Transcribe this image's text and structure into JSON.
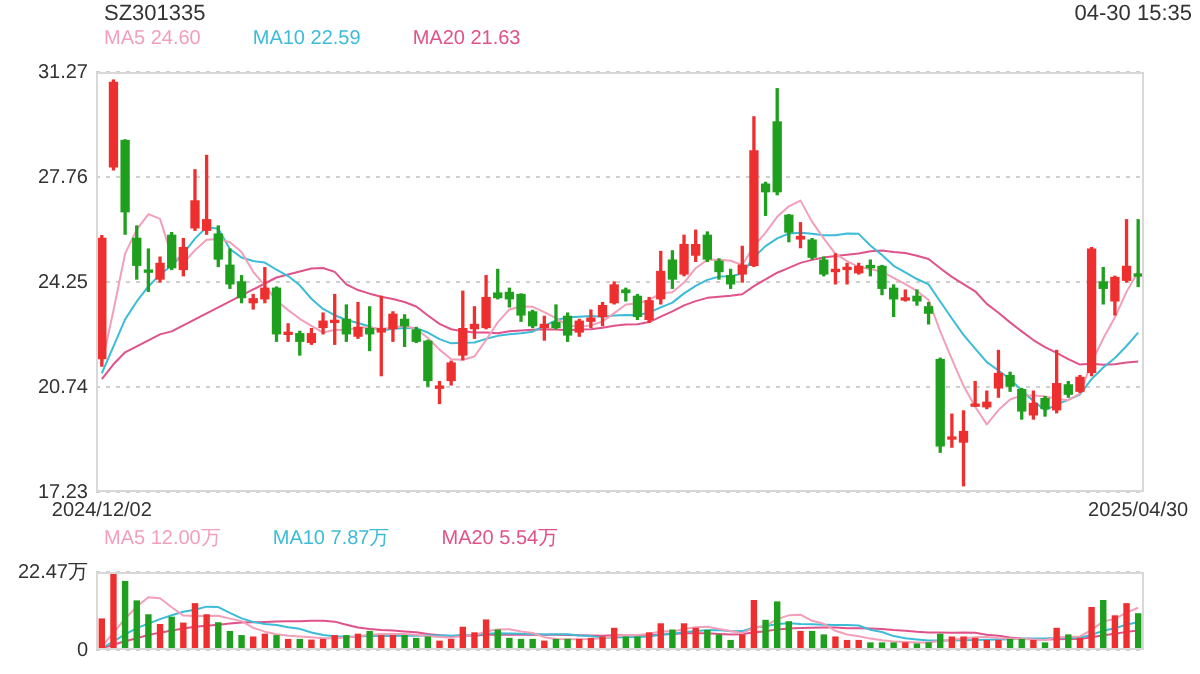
{
  "chart_data": [
    {
      "type": "candlestick",
      "title": "SZ301335",
      "annotations": [
        "04-30 15:35"
      ],
      "legend": "top left",
      "grid": "y",
      "marker": "none",
      "categories": [
        "2024/12/02",
        null,
        null,
        null,
        null,
        null,
        null,
        null,
        null,
        null,
        null,
        null,
        null,
        null,
        null,
        null,
        null,
        null,
        null,
        null,
        null,
        null,
        null,
        null,
        null,
        null,
        null,
        null,
        null,
        null,
        null,
        null,
        null,
        null,
        null,
        null,
        null,
        null,
        null,
        null,
        null,
        null,
        null,
        null,
        null,
        null,
        null,
        null,
        null,
        null,
        null,
        null,
        null,
        null,
        null,
        null,
        null,
        null,
        null,
        null,
        null,
        null,
        null,
        null,
        null,
        null,
        null,
        null,
        null,
        null,
        null,
        null,
        null,
        null,
        null,
        null,
        null,
        null,
        null,
        null,
        null,
        null,
        null,
        null,
        null,
        null,
        null,
        null,
        null,
        "2025/04/30"
      ],
      "ylim": [
        17.23,
        31.27
      ],
      "yticks": [
        17.23,
        20.74,
        24.25,
        27.76,
        31.27
      ],
      "ohlc": [
        [
          21.69,
          25.8,
          21.44,
          25.71
        ],
        [
          28.1,
          31.0,
          28.0,
          30.92
        ],
        [
          28.98,
          29.0,
          25.85,
          26.6
        ],
        [
          25.71,
          26.12,
          24.35,
          24.81
        ],
        [
          24.62,
          25.35,
          23.94,
          24.58
        ],
        [
          24.35,
          25.08,
          24.25,
          24.87
        ],
        [
          25.81,
          25.9,
          24.67,
          24.73
        ],
        [
          24.67,
          25.7,
          24.46,
          25.4
        ],
        [
          26.06,
          28.0,
          25.98,
          26.96
        ],
        [
          25.98,
          28.48,
          25.85,
          26.33
        ],
        [
          25.85,
          26.12,
          24.77,
          25.02
        ],
        [
          24.81,
          25.35,
          24.04,
          24.19
        ],
        [
          24.25,
          24.46,
          23.56,
          23.73
        ],
        [
          23.56,
          23.83,
          23.35,
          23.69
        ],
        [
          23.69,
          24.73,
          23.56,
          24.04
        ],
        [
          24.04,
          24.08,
          22.27,
          22.52
        ],
        [
          22.5,
          22.85,
          22.27,
          22.56
        ],
        [
          22.52,
          22.6,
          21.81,
          22.27
        ],
        [
          22.23,
          22.69,
          22.17,
          22.52
        ],
        [
          22.73,
          23.21,
          22.52,
          22.94
        ],
        [
          22.9,
          23.83,
          22.17,
          22.94
        ],
        [
          23.0,
          23.48,
          22.27,
          22.52
        ],
        [
          22.44,
          23.56,
          22.37,
          22.73
        ],
        [
          22.69,
          23.42,
          21.96,
          22.52
        ],
        [
          22.58,
          23.77,
          21.12,
          22.69
        ],
        [
          22.69,
          23.25,
          22.27,
          23.17
        ],
        [
          23.0,
          23.15,
          22.1,
          22.79
        ],
        [
          22.65,
          22.73,
          22.23,
          22.27
        ],
        [
          22.27,
          22.3,
          20.77,
          20.96
        ],
        [
          20.7,
          20.92,
          20.19,
          20.77
        ],
        [
          20.96,
          21.6,
          20.81,
          21.54
        ],
        [
          21.81,
          23.94,
          21.65,
          22.69
        ],
        [
          22.69,
          23.42,
          22.37,
          22.83
        ],
        [
          22.73,
          24.46,
          22.69,
          23.73
        ],
        [
          23.88,
          24.67,
          23.69,
          23.73
        ],
        [
          23.9,
          24.04,
          23.42,
          23.69
        ],
        [
          23.83,
          23.85,
          22.94,
          23.15
        ],
        [
          23.25,
          23.3,
          22.73,
          22.79
        ],
        [
          22.73,
          23.1,
          22.31,
          22.83
        ],
        [
          22.9,
          23.48,
          22.69,
          22.73
        ],
        [
          23.1,
          23.21,
          22.27,
          22.48
        ],
        [
          22.58,
          23.0,
          22.44,
          22.94
        ],
        [
          22.94,
          23.31,
          22.73,
          23.04
        ],
        [
          23.1,
          23.56,
          22.79,
          23.46
        ],
        [
          23.56,
          24.25,
          23.52,
          24.15
        ],
        [
          23.98,
          24.04,
          23.62,
          23.9
        ],
        [
          23.77,
          23.83,
          23.0,
          23.1
        ],
        [
          23.0,
          23.73,
          22.9,
          23.62
        ],
        [
          23.69,
          25.27,
          23.52,
          24.6
        ],
        [
          24.98,
          25.29,
          24.04,
          24.35
        ],
        [
          24.52,
          25.81,
          24.46,
          25.5
        ],
        [
          25.15,
          25.98,
          24.94,
          25.5
        ],
        [
          25.81,
          25.92,
          24.94,
          25.02
        ],
        [
          24.94,
          25.02,
          24.35,
          24.6
        ],
        [
          24.46,
          24.67,
          24.04,
          24.19
        ],
        [
          24.52,
          25.44,
          24.25,
          24.81
        ],
        [
          24.81,
          29.77,
          24.77,
          28.63
        ],
        [
          27.52,
          27.58,
          26.48,
          27.27
        ],
        [
          29.6,
          30.71,
          27.17,
          27.27
        ],
        [
          26.48,
          26.5,
          25.6,
          25.92
        ],
        [
          25.69,
          26.23,
          25.4,
          25.77
        ],
        [
          25.65,
          25.7,
          25.02,
          25.08
        ],
        [
          24.98,
          25.08,
          24.46,
          24.52
        ],
        [
          24.6,
          25.19,
          24.19,
          24.67
        ],
        [
          24.67,
          24.87,
          24.19,
          24.73
        ],
        [
          24.56,
          24.87,
          24.52,
          24.77
        ],
        [
          24.8,
          24.98,
          24.46,
          24.73
        ],
        [
          24.77,
          24.8,
          23.83,
          24.04
        ],
        [
          24.04,
          24.15,
          23.1,
          23.69
        ],
        [
          23.65,
          23.98,
          23.62,
          23.69
        ],
        [
          23.77,
          23.98,
          23.48,
          23.62
        ],
        [
          23.42,
          23.56,
          22.85,
          23.21
        ],
        [
          21.65,
          21.7,
          18.56,
          18.77
        ],
        [
          19.0,
          19.83,
          18.73,
          19.04
        ],
        [
          18.9,
          19.94,
          17.44,
          19.25
        ],
        [
          20.1,
          20.92,
          20.1,
          20.15
        ],
        [
          20.08,
          20.6,
          20.02,
          20.23
        ],
        [
          20.71,
          21.96,
          20.4,
          21.19
        ],
        [
          21.12,
          21.23,
          20.6,
          20.77
        ],
        [
          20.65,
          20.69,
          19.67,
          19.94
        ],
        [
          19.81,
          20.6,
          19.67,
          20.19
        ],
        [
          20.35,
          20.42,
          19.77,
          20.02
        ],
        [
          19.98,
          21.96,
          19.88,
          20.85
        ],
        [
          20.81,
          20.92,
          20.4,
          20.5
        ],
        [
          20.6,
          21.12,
          20.56,
          21.06
        ],
        [
          21.23,
          25.4,
          21.12,
          25.35
        ],
        [
          24.25,
          24.73,
          23.52,
          24.04
        ],
        [
          23.62,
          24.44,
          23.15,
          24.4
        ],
        [
          24.31,
          26.33,
          24.25,
          24.77
        ],
        [
          24.5,
          26.33,
          24.1,
          24.45
        ]
      ],
      "colors": [
        "#ee2f2f",
        "#ee2f2f",
        "#1e9f1e",
        "#1e9f1e",
        "#1e9f1e",
        "#ee2f2f",
        "#1e9f1e",
        "#ee2f2f",
        "#ee2f2f",
        "#ee2f2f",
        "#1e9f1e",
        "#1e9f1e",
        "#1e9f1e",
        "#ee2f2f",
        "#ee2f2f",
        "#1e9f1e",
        "#ee2f2f",
        "#1e9f1e",
        "#ee2f2f",
        "#ee2f2f",
        "#ee2f2f",
        "#1e9f1e",
        "#ee2f2f",
        "#1e9f1e",
        "#ee2f2f",
        "#ee2f2f",
        "#1e9f1e",
        "#1e9f1e",
        "#1e9f1e",
        "#ee2f2f",
        "#ee2f2f",
        "#ee2f2f",
        "#ee2f2f",
        "#ee2f2f",
        "#1e9f1e",
        "#1e9f1e",
        "#1e9f1e",
        "#1e9f1e",
        "#ee2f2f",
        "#1e9f1e",
        "#1e9f1e",
        "#ee2f2f",
        "#ee2f2f",
        "#ee2f2f",
        "#ee2f2f",
        "#1e9f1e",
        "#1e9f1e",
        "#ee2f2f",
        "#ee2f2f",
        "#1e9f1e",
        "#ee2f2f",
        "#ee2f2f",
        "#1e9f1e",
        "#1e9f1e",
        "#1e9f1e",
        "#ee2f2f",
        "#ee2f2f",
        "#1e9f1e",
        "#1e9f1e",
        "#1e9f1e",
        "#ee2f2f",
        "#1e9f1e",
        "#1e9f1e",
        "#ee2f2f",
        "#ee2f2f",
        "#ee2f2f",
        "#1e9f1e",
        "#1e9f1e",
        "#1e9f1e",
        "#ee2f2f",
        "#1e9f1e",
        "#1e9f1e",
        "#1e9f1e",
        "#ee2f2f",
        "#ee2f2f",
        "#ee2f2f",
        "#ee2f2f",
        "#ee2f2f",
        "#1e9f1e",
        "#1e9f1e",
        "#ee2f2f",
        "#1e9f1e",
        "#ee2f2f",
        "#1e9f1e",
        "#ee2f2f",
        "#ee2f2f",
        "#1e9f1e",
        "#ee2f2f",
        "#ee2f2f",
        "#1e9f1e"
      ],
      "series": [
        {
          "type": "line",
          "name": "MA5 24.60",
          "color": "#f29fb9",
          "values": [
            21.5,
            23.3,
            25.2,
            26.0,
            26.52,
            26.36,
            25.12,
            24.88,
            25.31,
            25.66,
            25.69,
            25.58,
            25.25,
            24.59,
            24.13,
            23.63,
            23.31,
            23.02,
            22.78,
            22.56,
            22.65,
            22.64,
            22.73,
            22.73,
            22.68,
            22.73,
            22.78,
            22.69,
            22.38,
            21.99,
            21.67,
            21.65,
            21.76,
            22.31,
            22.9,
            23.33,
            23.43,
            23.42,
            23.24,
            23.04,
            22.8,
            22.75,
            22.8,
            22.93,
            23.21,
            23.5,
            23.53,
            23.65,
            23.87,
            23.91,
            24.23,
            24.71,
            24.99,
            24.99,
            24.96,
            24.82,
            25.45,
            25.9,
            26.43,
            26.78,
            26.97,
            26.26,
            25.71,
            25.19,
            24.95,
            24.75,
            24.68,
            24.59,
            24.39,
            24.18,
            23.95,
            23.65,
            22.6,
            21.67,
            20.78,
            20.08,
            19.49,
            19.97,
            20.32,
            20.46,
            20.46,
            20.42,
            20.35,
            20.3,
            20.52,
            21.56,
            22.36,
            23.07,
            23.92,
            24.6
          ]
        },
        {
          "type": "line",
          "name": "MA10 22.59",
          "color": "#3cbcd6",
          "values": [
            21.2,
            22.1,
            23.0,
            23.6,
            24.1,
            24.5,
            24.8,
            25.2,
            25.7,
            26.09,
            26.03,
            25.35,
            25.07,
            24.95,
            24.9,
            24.66,
            24.45,
            24.14,
            23.69,
            23.35,
            23.14,
            22.98,
            22.88,
            22.76,
            22.62,
            22.69,
            22.71,
            22.71,
            22.56,
            22.34,
            22.2,
            22.22,
            22.23,
            22.35,
            22.45,
            22.5,
            22.54,
            22.59,
            22.78,
            22.97,
            23.07,
            23.09,
            23.11,
            23.09,
            23.13,
            23.15,
            23.14,
            23.23,
            23.4,
            23.56,
            23.87,
            24.12,
            24.32,
            24.43,
            24.44,
            24.53,
            25.08,
            25.45,
            25.71,
            25.87,
            25.9,
            25.86,
            25.81,
            25.81,
            25.87,
            25.86,
            25.47,
            25.15,
            24.79,
            24.57,
            24.35,
            24.17,
            23.6,
            23.03,
            22.48,
            22.02,
            21.57,
            21.29,
            21.0,
            20.62,
            20.27,
            19.96,
            20.16,
            20.31,
            20.49,
            21.01,
            21.39,
            21.71,
            22.11,
            22.56
          ]
        },
        {
          "type": "line",
          "name": "MA20 21.63",
          "color": "#e0528a",
          "values": [
            21.0,
            21.5,
            21.9,
            22.1,
            22.3,
            22.5,
            22.6,
            22.8,
            23.0,
            23.2,
            23.4,
            23.6,
            23.8,
            24.0,
            24.2,
            24.4,
            24.5,
            24.6,
            24.7,
            24.72,
            24.59,
            24.17,
            23.98,
            23.86,
            23.76,
            23.68,
            23.58,
            23.43,
            23.13,
            22.85,
            22.67,
            22.6,
            22.56,
            22.56,
            22.54,
            22.6,
            22.63,
            22.65,
            22.67,
            22.66,
            22.64,
            22.66,
            22.67,
            22.72,
            22.79,
            22.83,
            22.84,
            22.91,
            23.09,
            23.27,
            23.47,
            23.61,
            23.72,
            23.76,
            23.79,
            23.84,
            24.11,
            24.34,
            24.56,
            24.72,
            24.89,
            24.99,
            25.07,
            25.12,
            25.16,
            25.2,
            25.28,
            25.3,
            25.25,
            25.22,
            25.13,
            25.02,
            24.71,
            24.42,
            24.18,
            23.94,
            23.52,
            23.22,
            22.9,
            22.6,
            22.31,
            22.07,
            21.88,
            21.67,
            21.49,
            21.52,
            21.48,
            21.5,
            21.56,
            21.59
          ]
        }
      ]
    },
    {
      "type": "bar",
      "legend": "top left",
      "grid": "y",
      "marker": "none",
      "categories": [
        null,
        null,
        null,
        null,
        null,
        null,
        null,
        null,
        null,
        null,
        null,
        null,
        null,
        null,
        null,
        null,
        null,
        null,
        null,
        null,
        null,
        null,
        null,
        null,
        null,
        null,
        null,
        null,
        null,
        null,
        null,
        null,
        null,
        null,
        null,
        null,
        null,
        null,
        null,
        null,
        null,
        null,
        null,
        null,
        null,
        null,
        null,
        null,
        null,
        null,
        null,
        null,
        null,
        null,
        null,
        null,
        null,
        null,
        null,
        null,
        null,
        null,
        null,
        null,
        null,
        null,
        null,
        null,
        null,
        null,
        null,
        null,
        null,
        null,
        null,
        null,
        null,
        null,
        null,
        null,
        null,
        null,
        null,
        null,
        null,
        null,
        null,
        null,
        null,
        null
      ],
      "ylim": [
        0,
        22.47
      ],
      "yticks": [
        0,
        {
          "value": 22.47,
          "label": "22.47万"
        }
      ],
      "values": [
        9.1,
        22.47,
        19.9,
        14.3,
        10.3,
        7.5,
        9.6,
        7.9,
        13.5,
        10.3,
        8.0,
        5.5,
        4.3,
        3.9,
        4.7,
        4.3,
        3.2,
        3.2,
        3.0,
        3.2,
        4.3,
        4.3,
        4.7,
        5.5,
        4.3,
        4.3,
        4.3,
        3.5,
        3.9,
        2.7,
        3.2,
        6.7,
        5.1,
        8.8,
        5.9,
        3.5,
        3.2,
        3.2,
        2.7,
        3.2,
        3.2,
        3.2,
        3.5,
        3.9,
        6.4,
        3.9,
        3.9,
        5.1,
        7.7,
        5.9,
        7.7,
        6.4,
        5.8,
        4.5,
        2.9,
        4.5,
        14.4,
        8.7,
        14.0,
        8.3,
        5.5,
        5.5,
        4.5,
        3.9,
        2.9,
        2.9,
        2.2,
        2.2,
        2.2,
        2.2,
        1.9,
        2.2,
        4.7,
        3.9,
        3.9,
        3.5,
        2.9,
        2.9,
        3.2,
        3.2,
        2.9,
        2.2,
        6.4,
        4.5,
        3.5,
        12.4,
        14.4,
        10.0,
        13.5,
        10.6
      ],
      "colors": [
        "#ee2f2f",
        "#ee2f2f",
        "#1e9f1e",
        "#1e9f1e",
        "#1e9f1e",
        "#ee2f2f",
        "#1e9f1e",
        "#ee2f2f",
        "#ee2f2f",
        "#ee2f2f",
        "#1e9f1e",
        "#1e9f1e",
        "#1e9f1e",
        "#ee2f2f",
        "#ee2f2f",
        "#1e9f1e",
        "#ee2f2f",
        "#1e9f1e",
        "#ee2f2f",
        "#ee2f2f",
        "#ee2f2f",
        "#1e9f1e",
        "#ee2f2f",
        "#1e9f1e",
        "#ee2f2f",
        "#ee2f2f",
        "#1e9f1e",
        "#1e9f1e",
        "#1e9f1e",
        "#ee2f2f",
        "#ee2f2f",
        "#ee2f2f",
        "#ee2f2f",
        "#ee2f2f",
        "#1e9f1e",
        "#1e9f1e",
        "#1e9f1e",
        "#1e9f1e",
        "#ee2f2f",
        "#1e9f1e",
        "#1e9f1e",
        "#ee2f2f",
        "#ee2f2f",
        "#ee2f2f",
        "#ee2f2f",
        "#1e9f1e",
        "#1e9f1e",
        "#ee2f2f",
        "#ee2f2f",
        "#1e9f1e",
        "#ee2f2f",
        "#ee2f2f",
        "#1e9f1e",
        "#1e9f1e",
        "#1e9f1e",
        "#ee2f2f",
        "#ee2f2f",
        "#1e9f1e",
        "#1e9f1e",
        "#1e9f1e",
        "#ee2f2f",
        "#1e9f1e",
        "#1e9f1e",
        "#ee2f2f",
        "#ee2f2f",
        "#ee2f2f",
        "#1e9f1e",
        "#1e9f1e",
        "#1e9f1e",
        "#ee2f2f",
        "#1e9f1e",
        "#1e9f1e",
        "#1e9f1e",
        "#ee2f2f",
        "#ee2f2f",
        "#ee2f2f",
        "#ee2f2f",
        "#ee2f2f",
        "#1e9f1e",
        "#1e9f1e",
        "#ee2f2f",
        "#1e9f1e",
        "#ee2f2f",
        "#1e9f1e",
        "#ee2f2f",
        "#ee2f2f",
        "#1e9f1e",
        "#ee2f2f",
        "#ee2f2f",
        "#1e9f1e"
      ],
      "series": [
        {
          "type": "line",
          "name": "MA5 12.00万",
          "color": "#f29fb9",
          "values": [
            1.0,
            5.0,
            9.0,
            12.5,
            15.21,
            14.89,
            12.32,
            9.92,
            9.76,
            9.76,
            9.86,
            9.04,
            8.32,
            6.4,
            5.28,
            4.54,
            4.08,
            3.86,
            3.68,
            3.38,
            3.38,
            3.6,
            3.9,
            4.4,
            4.62,
            4.62,
            4.62,
            4.38,
            4.06,
            3.74,
            3.52,
            4.0,
            4.32,
            5.3,
            5.94,
            6.0,
            5.3,
            4.92,
            3.7,
            3.16,
            3.1,
            3.1,
            3.16,
            3.4,
            4.04,
            4.18,
            4.32,
            4.64,
            5.4,
            5.3,
            6.06,
            6.56,
            6.7,
            6.06,
            5.46,
            4.82,
            6.42,
            7.0,
            8.9,
            9.98,
            10.18,
            8.4,
            7.56,
            5.54,
            4.46,
            3.94,
            3.28,
            2.82,
            2.48,
            2.34,
            2.14,
            2.14,
            2.64,
            2.98,
            3.32,
            3.64,
            3.78,
            3.42,
            3.28,
            3.14,
            3.02,
            2.88,
            3.58,
            3.84,
            3.9,
            5.8,
            8.24,
            8.96,
            10.76,
            12.18
          ]
        },
        {
          "type": "line",
          "name": "MA10 7.87万",
          "color": "#3cbcd6",
          "values": [
            0.5,
            2.5,
            4.5,
            6.3,
            7.6,
            8.9,
            10.0,
            11.0,
            11.6,
            12.49,
            12.38,
            10.68,
            9.12,
            8.08,
            7.52,
            7.2,
            6.56,
            6.09,
            5.04,
            4.33,
            3.96,
            3.84,
            3.88,
            4.04,
            4.0,
            4.0,
            4.11,
            4.14,
            4.23,
            4.18,
            4.07,
            4.31,
            4.35,
            4.68,
            4.84,
            4.76,
            4.65,
            4.62,
            4.5,
            4.55,
            4.55,
            4.2,
            4.04,
            3.55,
            3.6,
            3.64,
            3.71,
            3.9,
            4.4,
            4.67,
            5.12,
            5.44,
            5.67,
            5.73,
            5.38,
            5.44,
            6.49,
            6.85,
            7.48,
            7.72,
            7.5,
            7.41,
            7.28,
            7.22,
            7.22,
            7.06,
            5.84,
            5.19,
            4.01,
            3.4,
            3.04,
            2.71,
            2.73,
            2.73,
            2.83,
            2.89,
            2.96,
            3.03,
            3.13,
            3.23,
            3.33,
            3.33,
            3.5,
            3.56,
            3.52,
            4.41,
            5.56,
            6.27,
            7.3,
            8.04
          ]
        },
        {
          "type": "line",
          "name": "MA20 5.54万",
          "color": "#e0528a",
          "values": [
            0.5,
            1.5,
            2.5,
            3.4,
            4.3,
            5.0,
            5.6,
            6.2,
            6.7,
            7.0,
            7.3,
            7.6,
            7.9,
            8.0,
            8.1,
            8.2,
            8.3,
            8.3,
            8.4,
            8.41,
            8.17,
            7.26,
            6.5,
            6.06,
            5.76,
            5.6,
            5.34,
            5.12,
            4.64,
            4.26,
            4.02,
            4.08,
            4.12,
            4.36,
            4.42,
            4.38,
            4.38,
            4.38,
            4.37,
            4.37,
            4.31,
            4.26,
            4.2,
            4.12,
            4.22,
            4.2,
            4.18,
            4.26,
            4.45,
            4.61,
            4.84,
            4.82,
            4.86,
            4.64,
            4.49,
            4.54,
            5.1,
            5.38,
            5.94,
            6.2,
            6.31,
            6.43,
            6.48,
            6.48,
            6.3,
            6.25,
            6.17,
            6.02,
            5.75,
            5.56,
            5.27,
            5.06,
            5.01,
            4.98,
            5.03,
            4.98,
            4.4,
            4.11,
            3.57,
            3.32,
            3.19,
            3.02,
            3.12,
            3.15,
            3.18,
            3.65,
            4.26,
            4.65,
            5.22,
            5.64
          ]
        }
      ]
    }
  ]
}
